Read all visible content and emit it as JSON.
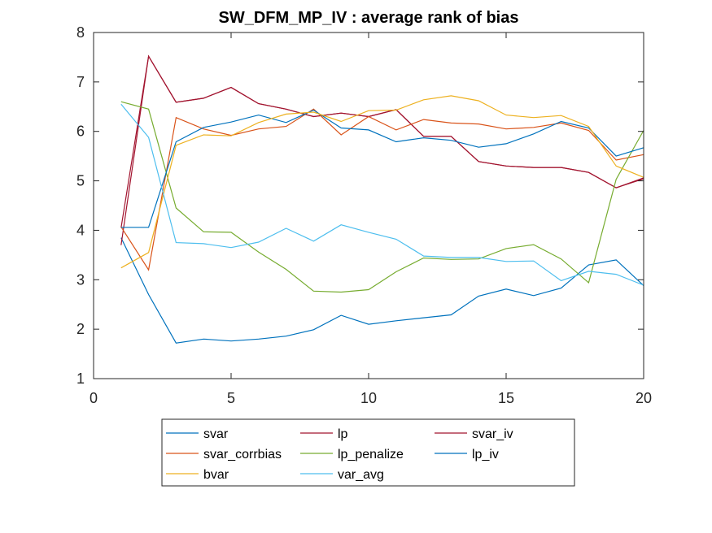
{
  "chart_data": {
    "type": "line",
    "title": "SW_DFM_MP_IV : average rank of bias",
    "xlabel": "",
    "ylabel": "",
    "xlim": [
      0,
      20
    ],
    "ylim": [
      1,
      8
    ],
    "xticks": [
      0,
      5,
      10,
      15,
      20
    ],
    "yticks": [
      1,
      2,
      3,
      4,
      5,
      6,
      7,
      8
    ],
    "grid": false,
    "legend_position": "bottom-outside",
    "x": [
      1,
      2,
      3,
      4,
      5,
      6,
      7,
      8,
      9,
      10,
      11,
      12,
      13,
      14,
      15,
      16,
      17,
      18,
      19,
      20
    ],
    "series": [
      {
        "name": "svar",
        "color": "#0072BD",
        "values": [
          3.85,
          2.7,
          1.72,
          1.8,
          1.76,
          1.8,
          1.86,
          1.99,
          2.28,
          2.1,
          2.17,
          2.23,
          2.29,
          2.67,
          2.81,
          2.68,
          2.83,
          3.3,
          3.4,
          2.88
        ]
      },
      {
        "name": "lp",
        "color": "#A2142F",
        "values": [
          3.7,
          7.52,
          6.59,
          6.67,
          6.89,
          6.56,
          6.45,
          6.3,
          6.37,
          6.3,
          6.44,
          5.9,
          5.9,
          5.39,
          5.3,
          5.27,
          5.27,
          5.17,
          4.86,
          5.06
        ]
      },
      {
        "name": "svar_iv",
        "color": "#A2142F",
        "values": [
          4.05,
          7.52,
          6.59,
          6.67,
          6.89,
          6.56,
          6.45,
          6.3,
          6.37,
          6.3,
          6.44,
          5.9,
          5.9,
          5.39,
          5.3,
          5.27,
          5.27,
          5.17,
          4.86,
          5.04
        ]
      },
      {
        "name": "svar_corrbias",
        "color": "#D95319",
        "values": [
          4.07,
          3.2,
          6.28,
          6.05,
          5.92,
          6.05,
          6.1,
          6.45,
          5.93,
          6.3,
          6.03,
          6.24,
          6.17,
          6.15,
          6.05,
          6.08,
          6.17,
          6.02,
          5.42,
          5.53
        ]
      },
      {
        "name": "lp_penalize",
        "color": "#77AC30",
        "values": [
          6.6,
          6.45,
          4.45,
          3.97,
          3.96,
          3.56,
          3.21,
          2.77,
          2.75,
          2.8,
          3.16,
          3.44,
          3.41,
          3.42,
          3.63,
          3.71,
          3.42,
          2.94,
          5.03,
          6.02
        ]
      },
      {
        "name": "lp_iv",
        "color": "#0072BD",
        "values": [
          4.06,
          4.06,
          5.79,
          6.08,
          6.19,
          6.33,
          6.18,
          6.43,
          6.07,
          6.03,
          5.79,
          5.87,
          5.82,
          5.68,
          5.75,
          5.95,
          6.2,
          6.07,
          5.5,
          5.67
        ]
      },
      {
        "name": "bvar",
        "color": "#EDB120",
        "values": [
          3.24,
          3.55,
          5.72,
          5.93,
          5.91,
          6.18,
          6.35,
          6.39,
          6.2,
          6.42,
          6.43,
          6.64,
          6.72,
          6.62,
          6.33,
          6.28,
          6.32,
          6.1,
          5.3,
          5.07
        ]
      },
      {
        "name": "var_avg",
        "color": "#4DBEEE",
        "values": [
          6.55,
          5.88,
          3.75,
          3.73,
          3.65,
          3.76,
          4.04,
          3.78,
          4.11,
          3.96,
          3.82,
          3.48,
          3.45,
          3.45,
          3.37,
          3.38,
          2.98,
          3.17,
          3.11,
          2.89
        ]
      }
    ]
  }
}
